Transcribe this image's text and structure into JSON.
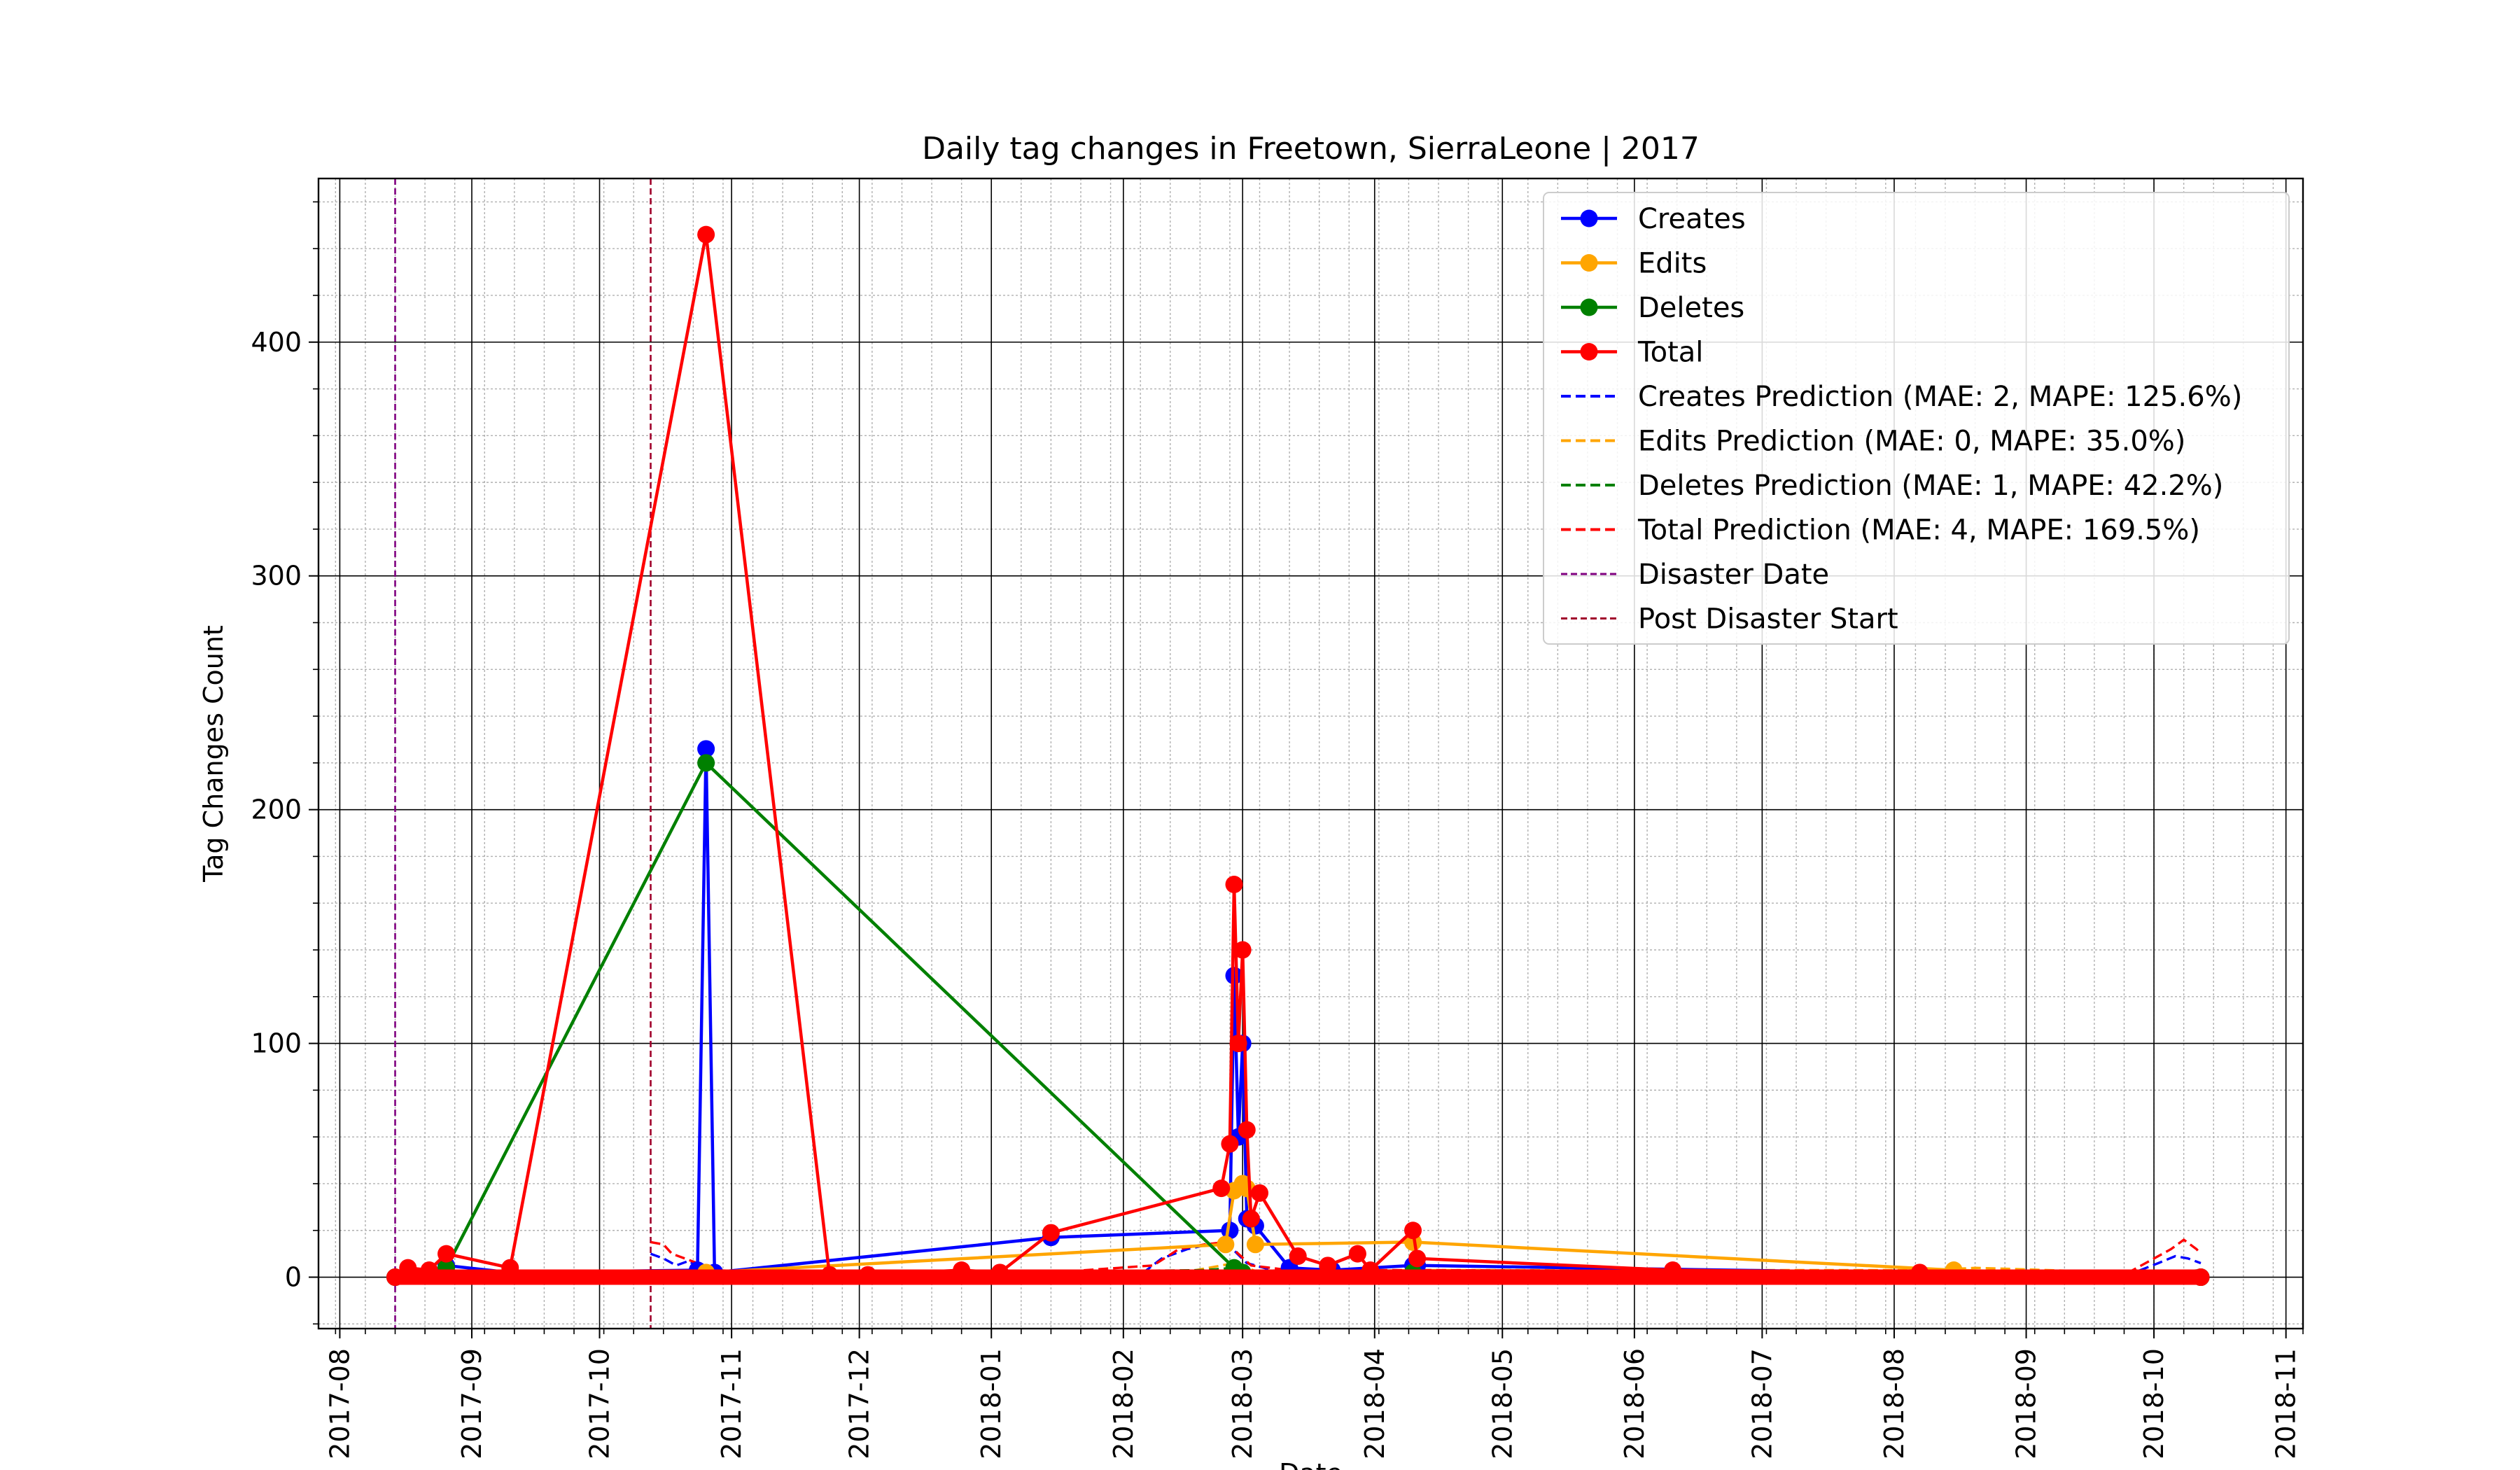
{
  "chart_data": {
    "type": "line",
    "title": "Daily tag changes in Freetown, SierraLeone | 2017",
    "xlabel": "Date",
    "ylabel": "Tag Changes Count",
    "x_range": [
      "2017-07-27",
      "2018-11-05"
    ],
    "ylim": [
      -22,
      470
    ],
    "y_ticks": [
      0,
      100,
      200,
      300,
      400
    ],
    "x_ticks": [
      "2017-08",
      "2017-09",
      "2017-10",
      "2017-11",
      "2017-12",
      "2018-01",
      "2018-02",
      "2018-03",
      "2018-04",
      "2018-05",
      "2018-06",
      "2018-07",
      "2018-08",
      "2018-09",
      "2018-10",
      "2018-11"
    ],
    "x_tick_dates": [
      "2017-08-01",
      "2017-09-01",
      "2017-10-01",
      "2017-11-01",
      "2017-12-01",
      "2018-01-01",
      "2018-02-01",
      "2018-03-01",
      "2018-04-01",
      "2018-05-01",
      "2018-06-01",
      "2018-07-01",
      "2018-08-01",
      "2018-09-01",
      "2018-10-01",
      "2018-11-01"
    ],
    "grid": true,
    "legend_position": "top-right",
    "series": [
      {
        "name": "Creates",
        "style": "solid-marker",
        "color": "#0000ff",
        "points": [
          [
            "2017-08-14",
            0
          ],
          [
            "2017-08-17",
            2
          ],
          [
            "2017-08-22",
            2
          ],
          [
            "2017-08-26",
            5
          ],
          [
            "2017-09-10",
            2
          ],
          [
            "2017-10-24",
            3
          ],
          [
            "2017-10-26",
            226
          ],
          [
            "2017-10-28",
            2
          ],
          [
            "2018-01-15",
            17
          ],
          [
            "2018-02-26",
            20
          ],
          [
            "2018-02-27",
            129
          ],
          [
            "2018-02-28",
            60
          ],
          [
            "2018-03-01",
            100
          ],
          [
            "2018-03-02",
            25
          ],
          [
            "2018-03-04",
            22
          ],
          [
            "2018-03-12",
            4
          ],
          [
            "2018-03-22",
            3
          ],
          [
            "2018-04-10",
            5
          ],
          [
            "2018-04-11",
            5
          ],
          [
            "2018-10-12",
            0
          ]
        ]
      },
      {
        "name": "Edits",
        "style": "solid-marker",
        "color": "#ffa500",
        "points": [
          [
            "2017-08-14",
            0
          ],
          [
            "2017-10-26",
            2
          ],
          [
            "2018-02-25",
            14
          ],
          [
            "2018-02-27",
            37
          ],
          [
            "2018-03-01",
            40
          ],
          [
            "2018-03-02",
            38
          ],
          [
            "2018-03-04",
            14
          ],
          [
            "2018-04-10",
            15
          ],
          [
            "2018-08-15",
            3
          ],
          [
            "2018-10-12",
            0
          ]
        ]
      },
      {
        "name": "Deletes",
        "style": "solid-marker",
        "color": "#008000",
        "points": [
          [
            "2017-08-14",
            0
          ],
          [
            "2017-08-26",
            4
          ],
          [
            "2017-10-26",
            220
          ],
          [
            "2018-02-27",
            4
          ],
          [
            "2018-03-01",
            2
          ],
          [
            "2018-04-10",
            2
          ],
          [
            "2018-10-12",
            0
          ]
        ]
      },
      {
        "name": "Total",
        "style": "solid-marker",
        "color": "#ff0000",
        "points": [
          [
            "2017-08-14",
            0
          ],
          [
            "2017-08-17",
            4
          ],
          [
            "2017-08-22",
            3
          ],
          [
            "2017-08-26",
            10
          ],
          [
            "2017-09-10",
            4
          ],
          [
            "2017-10-26",
            446
          ],
          [
            "2017-11-24",
            1
          ],
          [
            "2017-12-03",
            1
          ],
          [
            "2017-12-25",
            3
          ],
          [
            "2018-01-03",
            2
          ],
          [
            "2018-01-15",
            19
          ],
          [
            "2018-02-24",
            38
          ],
          [
            "2018-02-26",
            57
          ],
          [
            "2018-02-27",
            168
          ],
          [
            "2018-02-28",
            100
          ],
          [
            "2018-03-01",
            140
          ],
          [
            "2018-03-02",
            63
          ],
          [
            "2018-03-03",
            25
          ],
          [
            "2018-03-05",
            36
          ],
          [
            "2018-03-14",
            9
          ],
          [
            "2018-03-21",
            5
          ],
          [
            "2018-03-28",
            10
          ],
          [
            "2018-03-31",
            3
          ],
          [
            "2018-04-10",
            20
          ],
          [
            "2018-04-11",
            8
          ],
          [
            "2018-06-10",
            3
          ],
          [
            "2018-08-07",
            2
          ],
          [
            "2018-10-12",
            0
          ]
        ]
      },
      {
        "name": "Creates Prediction (MAE: 2, MAPE: 125.6%)",
        "style": "dashed",
        "color": "#0000ff",
        "points": [
          [
            "2017-10-13",
            10
          ],
          [
            "2017-10-16",
            8
          ],
          [
            "2017-10-19",
            5
          ],
          [
            "2017-10-22",
            7
          ],
          [
            "2017-10-25",
            3
          ],
          [
            "2017-10-28",
            2
          ],
          [
            "2017-11-15",
            1
          ],
          [
            "2018-01-15",
            1
          ],
          [
            "2018-02-05",
            1
          ],
          [
            "2018-02-10",
            8
          ],
          [
            "2018-02-16",
            12
          ],
          [
            "2018-02-21",
            14
          ],
          [
            "2018-02-25",
            15
          ],
          [
            "2018-03-02",
            6
          ],
          [
            "2018-03-10",
            2
          ],
          [
            "2018-04-15",
            2
          ],
          [
            "2018-09-25",
            1
          ],
          [
            "2018-10-02",
            6
          ],
          [
            "2018-10-06",
            9
          ],
          [
            "2018-10-09",
            8
          ],
          [
            "2018-10-12",
            6
          ]
        ]
      },
      {
        "name": "Edits Prediction (MAE: 0, MAPE: 35.0%)",
        "style": "dashed",
        "color": "#ffa500",
        "points": [
          [
            "2017-10-13",
            2
          ],
          [
            "2017-10-28",
            1
          ],
          [
            "2018-02-15",
            2
          ],
          [
            "2018-02-27",
            6
          ],
          [
            "2018-03-05",
            2
          ],
          [
            "2018-04-10",
            3
          ],
          [
            "2018-08-10",
            3
          ],
          [
            "2018-08-20",
            4
          ],
          [
            "2018-10-12",
            1
          ]
        ]
      },
      {
        "name": "Deletes Prediction (MAE: 1, MAPE: 42.2%)",
        "style": "dashed",
        "color": "#008000",
        "points": [
          [
            "2017-10-13",
            3
          ],
          [
            "2017-10-20",
            2
          ],
          [
            "2017-10-28",
            1
          ],
          [
            "2018-02-20",
            3
          ],
          [
            "2018-02-27",
            4
          ],
          [
            "2018-03-05",
            2
          ],
          [
            "2018-10-05",
            2
          ],
          [
            "2018-10-12",
            3
          ]
        ]
      },
      {
        "name": "Total Prediction (MAE: 4, MAPE: 169.5%)",
        "style": "dashed",
        "color": "#ff0000",
        "points": [
          [
            "2017-10-13",
            15
          ],
          [
            "2017-10-16",
            14
          ],
          [
            "2017-10-18",
            10
          ],
          [
            "2017-10-21",
            8
          ],
          [
            "2017-10-24",
            6
          ],
          [
            "2017-10-27",
            3
          ],
          [
            "2017-11-15",
            2
          ],
          [
            "2018-01-15",
            2
          ],
          [
            "2018-02-08",
            5
          ],
          [
            "2018-02-14",
            12
          ],
          [
            "2018-02-20",
            14
          ],
          [
            "2018-02-25",
            15
          ],
          [
            "2018-03-03",
            5
          ],
          [
            "2018-03-12",
            3
          ],
          [
            "2018-04-15",
            3
          ],
          [
            "2018-09-25",
            2
          ],
          [
            "2018-10-02",
            9
          ],
          [
            "2018-10-05",
            12
          ],
          [
            "2018-10-08",
            16
          ],
          [
            "2018-10-11",
            12
          ],
          [
            "2018-10-12",
            10
          ]
        ]
      }
    ],
    "vlines": [
      {
        "name": "Disaster Date",
        "date": "2017-08-14",
        "color": "#800080"
      },
      {
        "name": "Post Disaster Start",
        "date": "2017-10-13",
        "color": "#a0002a"
      }
    ]
  }
}
